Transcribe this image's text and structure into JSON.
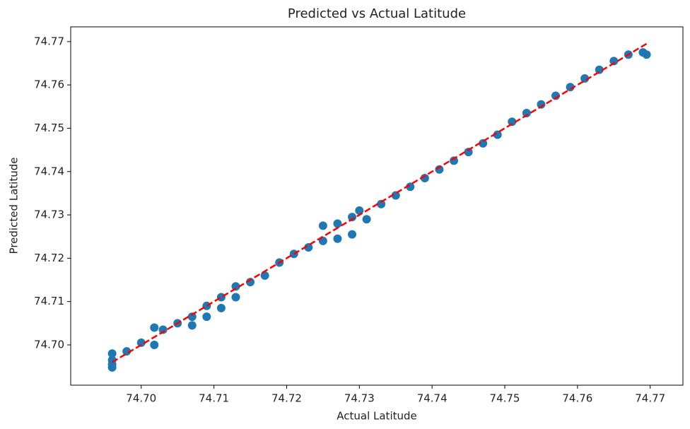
{
  "chart_data": {
    "type": "scatter",
    "title": "Predicted vs Actual Latitude",
    "x_label": "Actual Latitude",
    "y_label": "Predicted Latitude",
    "x": [
      74.696,
      74.696,
      74.696,
      74.696,
      74.698,
      74.7,
      74.7018,
      74.7018,
      74.703,
      74.705,
      74.707,
      74.707,
      74.709,
      74.709,
      74.711,
      74.711,
      74.713,
      74.713,
      74.715,
      74.717,
      74.719,
      74.721,
      74.723,
      74.725,
      74.725,
      74.727,
      74.727,
      74.729,
      74.729,
      74.73,
      74.731,
      74.733,
      74.735,
      74.737,
      74.739,
      74.741,
      74.743,
      74.745,
      74.747,
      74.749,
      74.751,
      74.753,
      74.755,
      74.757,
      74.759,
      74.761,
      74.763,
      74.765,
      74.767,
      74.769,
      74.7695
    ],
    "y": [
      74.6965,
      74.6955,
      74.698,
      74.6948,
      74.6985,
      74.7005,
      74.704,
      74.7,
      74.7035,
      74.705,
      74.7065,
      74.7045,
      74.709,
      74.7065,
      74.711,
      74.7085,
      74.7135,
      74.711,
      74.7145,
      74.716,
      74.719,
      74.721,
      74.7225,
      74.7275,
      74.724,
      74.728,
      74.7245,
      74.7295,
      74.7255,
      74.731,
      74.729,
      74.7325,
      74.7345,
      74.7365,
      74.7385,
      74.7405,
      74.7425,
      74.7445,
      74.7465,
      74.7485,
      74.7515,
      74.7535,
      74.7555,
      74.7575,
      74.7595,
      74.7615,
      74.7635,
      74.7655,
      74.767,
      74.7675,
      74.767
    ],
    "color": "#1f77b4",
    "fit_line": {
      "x": [
        74.696,
        74.7695
      ],
      "y": [
        74.696,
        74.7695
      ],
      "color": "#ff0000",
      "dashed": true
    },
    "xlim": [
      74.6903,
      74.7745
    ],
    "ylim": [
      74.6907,
      74.7734
    ],
    "xticks": [
      {
        "value": 74.7,
        "label": "74.70"
      },
      74.71,
      74.72,
      74.73,
      74.74,
      74.75,
      74.76,
      74.77
    ],
    "yticks": [
      {
        "value": 74.7,
        "label": "74.70"
      },
      74.71,
      74.72,
      74.73,
      74.74,
      74.75,
      74.76,
      74.77
    ],
    "grid": false
  }
}
